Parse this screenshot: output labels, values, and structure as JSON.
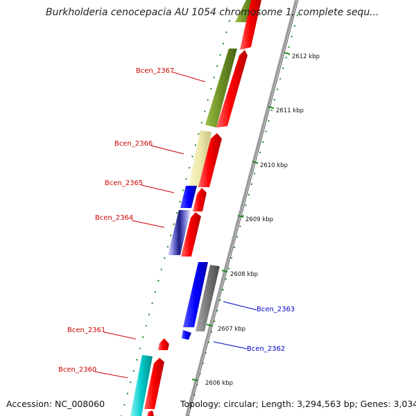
{
  "header": {
    "title": "Burkholderia cenocepacia AU 1054 chromosome 1, complete sequ..."
  },
  "footer": {
    "accession": "Accession: NC_008060",
    "summary": "Topology: circular; Length: 3,294,563 bp; Genes: 3,034"
  },
  "ruler": {
    "unit": "kbp",
    "ticks": [
      {
        "label": "2612 kbp"
      },
      {
        "label": "2611 kbp"
      },
      {
        "label": "2610 kbp"
      },
      {
        "label": "2609 kbp"
      },
      {
        "label": "2608 kbp"
      },
      {
        "label": "2607 kbp"
      },
      {
        "label": "2606 kbp"
      }
    ]
  },
  "genes": {
    "upper_strand": [
      {
        "name": "Bcen_2367",
        "color": "#cc0000"
      },
      {
        "name": "Bcen_2366",
        "color": "#cc0000"
      },
      {
        "name": "Bcen_2365",
        "color": "#cc0000"
      },
      {
        "name": "Bcen_2364",
        "color": "#cc0000"
      },
      {
        "name": "Bcen_2361",
        "color": "#cc0000"
      },
      {
        "name": "Bcen_2360",
        "color": "#cc0000"
      }
    ],
    "lower_strand": [
      {
        "name": "Bcen_2363",
        "color": "#0000cc"
      },
      {
        "name": "Bcen_2362",
        "color": "#0000cc"
      }
    ]
  },
  "colors": {
    "backbone": "#9a9a9a",
    "orf_forward": "#ff0000",
    "cog_olive": "#6b8e23",
    "cog_khaki": "#eee8aa",
    "cog_blue": "#0000ff",
    "cog_navy_striped": "#6666cc",
    "cog_gray": "#777777",
    "cog_cyan": "#00cccc",
    "tick_green": "#228b22"
  }
}
